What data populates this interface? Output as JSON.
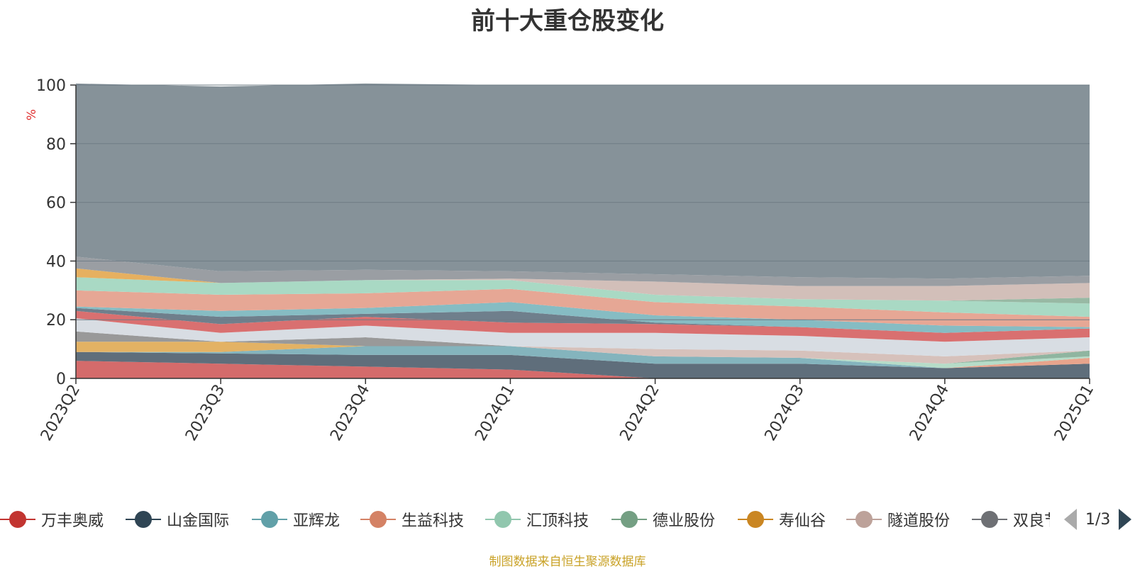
{
  "title": "前十大重仓股变化",
  "source_note": "制图数据来自恒生聚源数据库",
  "legend_pager": {
    "text": "1/3",
    "prev_icon": "triangle-left-icon",
    "next_icon": "triangle-right-icon"
  },
  "chart_data": {
    "type": "area",
    "stacked": true,
    "title": "前十大重仓股变化",
    "ylabel": "%",
    "ylim": [
      0,
      100
    ],
    "yticks": [
      0,
      20,
      40,
      60,
      80,
      100
    ],
    "grid": true,
    "x": [
      "2023Q2",
      "2023Q3",
      "2023Q4",
      "2024Q1",
      "2024Q2",
      "2024Q3",
      "2024Q4",
      "2025Q1"
    ],
    "series": [
      {
        "name": "万丰奥威",
        "color": "#d46b6b",
        "legend_color": "#c23531",
        "values": [
          6.0,
          5.0,
          4.0,
          3.0,
          0.0,
          0.0,
          0.0,
          0.0
        ]
      },
      {
        "name": "山金国际",
        "color": "#5f6e7b",
        "legend_color": "#2f4554",
        "values": [
          3.0,
          3.5,
          4.0,
          5.0,
          5.0,
          5.0,
          3.5,
          5.0
        ]
      },
      {
        "name": "亚辉龙",
        "color": "#84b4bd",
        "legend_color": "#61a0a8",
        "values": [
          0.0,
          0.5,
          3.0,
          3.0,
          2.5,
          2.0,
          0.0,
          0.0
        ]
      },
      {
        "name": "生益科技",
        "color": "#e8a48c",
        "legend_color": "#d48265",
        "values": [
          0.0,
          0.0,
          0.0,
          0.0,
          0.0,
          0.0,
          0.0,
          2.0
        ]
      },
      {
        "name": "汇顶科技",
        "color": "#b6dcc8",
        "legend_color": "#91c7ae",
        "values": [
          0.0,
          0.0,
          0.0,
          0.0,
          0.0,
          0.0,
          1.5,
          0.5
        ]
      },
      {
        "name": "德业股份",
        "color": "#8fb5a0",
        "legend_color": "#749f83",
        "values": [
          0.0,
          0.0,
          0.0,
          0.0,
          0.0,
          0.0,
          0.0,
          2.0
        ]
      },
      {
        "name": "寿仙谷",
        "color": "#e3b264",
        "legend_color": "#ca8622",
        "values": [
          3.5,
          3.5,
          0.0,
          0.0,
          0.0,
          0.0,
          0.0,
          0.0
        ]
      },
      {
        "name": "隧道股份",
        "color": "#d6c1bb",
        "legend_color": "#bda29a",
        "values": [
          0.0,
          0.0,
          0.0,
          0.0,
          2.5,
          2.5,
          2.5,
          0.0
        ]
      },
      {
        "name": "双良节能",
        "color": "#999999",
        "legend_color": "#6e7074",
        "values": [
          3.5,
          0.0,
          3.0,
          0.0,
          0.0,
          0.0,
          0.0,
          0.0
        ]
      },
      {
        "name": "series-10",
        "color": "#d8dde3",
        "values": [
          4.5,
          3.0,
          4.0,
          4.5,
          5.5,
          5.0,
          5.0,
          4.5
        ]
      },
      {
        "name": "series-11",
        "color": "#d97070",
        "values": [
          2.5,
          3.0,
          3.0,
          3.5,
          3.0,
          3.0,
          3.0,
          3.0
        ]
      },
      {
        "name": "series-12",
        "color": "#6f7f8c",
        "values": [
          1.0,
          2.5,
          1.0,
          4.0,
          0.5,
          0.0,
          0.0,
          0.0
        ]
      },
      {
        "name": "series-13",
        "color": "#86bcc3",
        "values": [
          0.5,
          2.0,
          2.0,
          3.0,
          2.5,
          2.5,
          2.5,
          0.5
        ]
      },
      {
        "name": "series-14",
        "color": "#e6a795",
        "values": [
          5.5,
          5.5,
          5.0,
          4.5,
          4.5,
          4.5,
          4.5,
          3.5
        ]
      },
      {
        "name": "series-15",
        "color": "#a9d9c4",
        "values": [
          4.5,
          4.0,
          4.5,
          3.0,
          2.5,
          2.5,
          4.0,
          4.5
        ]
      },
      {
        "name": "series-16",
        "color": "#98b9a4",
        "values": [
          0.0,
          0.0,
          0.0,
          0.0,
          0.0,
          0.0,
          0.0,
          2.0
        ]
      },
      {
        "name": "series-17",
        "color": "#e6b060",
        "values": [
          3.0,
          0.0,
          0.0,
          0.0,
          0.0,
          0.0,
          0.0,
          0.0
        ]
      },
      {
        "name": "series-18",
        "color": "#d2bfb9",
        "values": [
          0.0,
          0.0,
          0.0,
          0.5,
          4.5,
          4.5,
          5.0,
          5.0
        ]
      },
      {
        "name": "series-19",
        "color": "#9a9ea3",
        "values": [
          4.0,
          4.0,
          3.5,
          2.5,
          2.5,
          3.0,
          2.5,
          2.5
        ]
      },
      {
        "name": "series-20",
        "color": "#869299",
        "values": [
          59.0,
          63.0,
          63.5,
          63.5,
          64.5,
          65.5,
          66.0,
          65.0
        ]
      }
    ]
  }
}
